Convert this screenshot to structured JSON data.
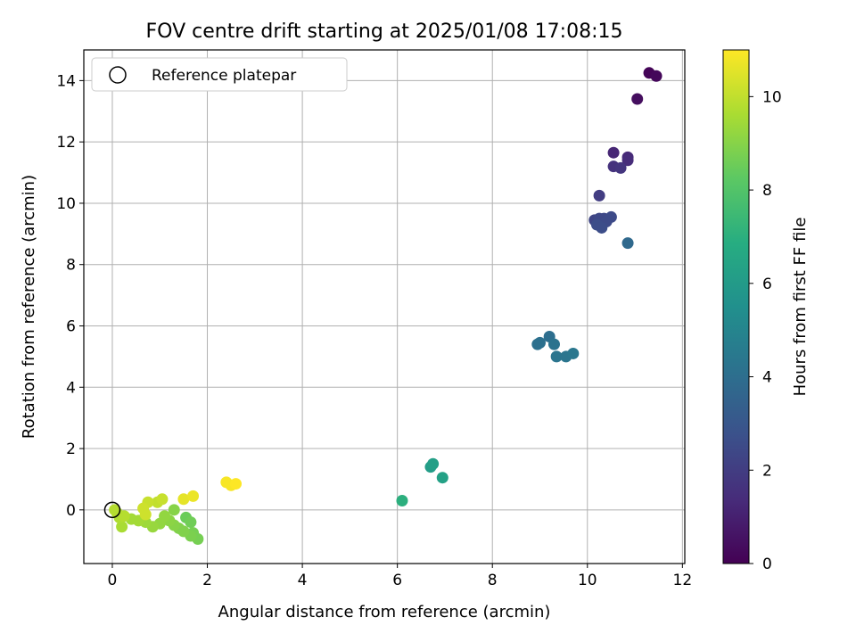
{
  "chart_data": {
    "type": "scatter",
    "title": "FOV centre drift starting at 2025/01/08 17:08:15",
    "xlabel": "Angular distance from reference (arcmin)",
    "ylabel": "Rotation from reference (arcmin)",
    "xlim": [
      -0.6,
      12.05
    ],
    "ylim": [
      -1.75,
      15.0
    ],
    "xticks": [
      0,
      2,
      4,
      6,
      8,
      10,
      12
    ],
    "yticks": [
      0,
      2,
      4,
      6,
      8,
      10,
      12,
      14
    ],
    "grid": true,
    "legend": {
      "position": "top-left",
      "entries": [
        "Reference platepar"
      ]
    },
    "colorbar": {
      "label": "Hours from first FF file",
      "range": [
        0,
        11
      ],
      "ticks": [
        0,
        2,
        4,
        6,
        8,
        10
      ],
      "colormap": "viridis"
    },
    "reference_point": {
      "x": 0,
      "y": 0
    },
    "points": [
      {
        "x": 11.3,
        "y": 14.25,
        "c": 0.1
      },
      {
        "x": 11.45,
        "y": 14.15,
        "c": 0.2
      },
      {
        "x": 11.05,
        "y": 13.4,
        "c": 0.4
      },
      {
        "x": 10.55,
        "y": 11.65,
        "c": 1.2
      },
      {
        "x": 10.85,
        "y": 11.5,
        "c": 1.3
      },
      {
        "x": 10.85,
        "y": 11.4,
        "c": 1.4
      },
      {
        "x": 10.55,
        "y": 11.2,
        "c": 1.6
      },
      {
        "x": 10.7,
        "y": 11.15,
        "c": 1.7
      },
      {
        "x": 10.25,
        "y": 10.25,
        "c": 2.0
      },
      {
        "x": 10.15,
        "y": 9.45,
        "c": 2.3
      },
      {
        "x": 10.25,
        "y": 9.5,
        "c": 2.4
      },
      {
        "x": 10.35,
        "y": 9.5,
        "c": 2.4
      },
      {
        "x": 10.5,
        "y": 9.55,
        "c": 2.5
      },
      {
        "x": 10.4,
        "y": 9.4,
        "c": 2.5
      },
      {
        "x": 10.2,
        "y": 9.3,
        "c": 2.6
      },
      {
        "x": 10.3,
        "y": 9.2,
        "c": 2.6
      },
      {
        "x": 10.85,
        "y": 8.7,
        "c": 3.8
      },
      {
        "x": 9.2,
        "y": 5.65,
        "c": 4.0
      },
      {
        "x": 8.95,
        "y": 5.4,
        "c": 4.1
      },
      {
        "x": 9.0,
        "y": 5.45,
        "c": 4.1
      },
      {
        "x": 9.3,
        "y": 5.4,
        "c": 4.2
      },
      {
        "x": 9.35,
        "y": 5.0,
        "c": 4.3
      },
      {
        "x": 9.55,
        "y": 5.0,
        "c": 4.3
      },
      {
        "x": 9.7,
        "y": 5.1,
        "c": 4.4
      },
      {
        "x": 6.7,
        "y": 1.4,
        "c": 6.1
      },
      {
        "x": 6.75,
        "y": 1.5,
        "c": 6.2
      },
      {
        "x": 6.95,
        "y": 1.05,
        "c": 6.3
      },
      {
        "x": 6.1,
        "y": 0.3,
        "c": 7.0
      },
      {
        "x": 1.55,
        "y": -0.25,
        "c": 8.5
      },
      {
        "x": 1.65,
        "y": -0.4,
        "c": 8.6
      },
      {
        "x": 1.7,
        "y": -0.75,
        "c": 8.7
      },
      {
        "x": 1.8,
        "y": -0.95,
        "c": 8.7
      },
      {
        "x": 1.65,
        "y": -0.85,
        "c": 8.8
      },
      {
        "x": 1.4,
        "y": -0.6,
        "c": 8.9
      },
      {
        "x": 1.5,
        "y": -0.7,
        "c": 8.9
      },
      {
        "x": 1.3,
        "y": -0.5,
        "c": 9.0
      },
      {
        "x": 1.2,
        "y": -0.35,
        "c": 9.1
      },
      {
        "x": 1.0,
        "y": -0.45,
        "c": 9.2
      },
      {
        "x": 0.85,
        "y": -0.55,
        "c": 9.3
      },
      {
        "x": 0.7,
        "y": -0.4,
        "c": 9.4
      },
      {
        "x": 0.55,
        "y": -0.35,
        "c": 9.5
      },
      {
        "x": 0.4,
        "y": -0.3,
        "c": 9.5
      },
      {
        "x": 0.2,
        "y": -0.55,
        "c": 9.6
      },
      {
        "x": 0.15,
        "y": -0.25,
        "c": 9.7
      },
      {
        "x": 0.1,
        "y": -0.1,
        "c": 9.7
      },
      {
        "x": 0.05,
        "y": 0.0,
        "c": 9.8
      },
      {
        "x": 0.25,
        "y": -0.2,
        "c": 9.8
      },
      {
        "x": 1.3,
        "y": 0.0,
        "c": 9.0
      },
      {
        "x": 1.1,
        "y": -0.2,
        "c": 9.2
      },
      {
        "x": 0.95,
        "y": 0.25,
        "c": 10.0
      },
      {
        "x": 1.05,
        "y": 0.35,
        "c": 10.1
      },
      {
        "x": 0.75,
        "y": 0.25,
        "c": 10.1
      },
      {
        "x": 0.7,
        "y": -0.15,
        "c": 10.2
      },
      {
        "x": 0.65,
        "y": 0.05,
        "c": 10.2
      },
      {
        "x": 1.5,
        "y": 0.35,
        "c": 10.6
      },
      {
        "x": 1.7,
        "y": 0.45,
        "c": 10.7
      },
      {
        "x": 2.4,
        "y": 0.9,
        "c": 10.9
      },
      {
        "x": 2.5,
        "y": 0.8,
        "c": 10.9
      },
      {
        "x": 2.6,
        "y": 0.85,
        "c": 11.0
      }
    ]
  }
}
